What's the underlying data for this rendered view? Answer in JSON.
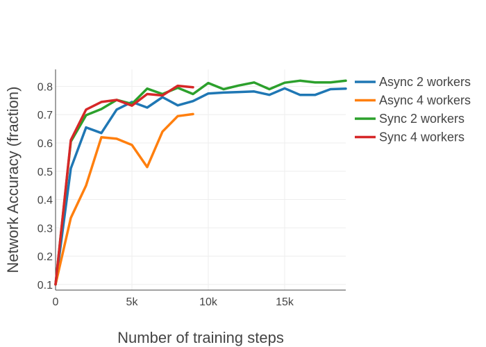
{
  "chart_data": {
    "type": "line",
    "title": "",
    "xlabel": "Number of training steps",
    "ylabel": "Network Accuracy (fraction)",
    "xlim": [
      0,
      19000
    ],
    "ylim": [
      0.08,
      0.86
    ],
    "xticks": [
      0,
      5000,
      10000,
      15000
    ],
    "xtick_labels": [
      "0",
      "5k",
      "10k",
      "15k"
    ],
    "yticks": [
      0.1,
      0.2,
      0.3,
      0.4,
      0.5,
      0.6,
      0.7,
      0.8
    ],
    "ytick_labels": [
      "0.1",
      "0.2",
      "0.3",
      "0.4",
      "0.5",
      "0.6",
      "0.7",
      "0.8"
    ],
    "grid": true,
    "legend_position": "right",
    "series": [
      {
        "name": "Async 2 workers",
        "color": "#1f77b4",
        "x": [
          0,
          1000,
          2000,
          3000,
          4000,
          5000,
          6000,
          7000,
          8000,
          9000,
          10000,
          11000,
          12000,
          13000,
          14000,
          15000,
          16000,
          17000,
          18000,
          19000
        ],
        "y": [
          0.1,
          0.51,
          0.655,
          0.635,
          0.718,
          0.745,
          0.725,
          0.762,
          0.733,
          0.748,
          0.775,
          0.778,
          0.78,
          0.782,
          0.77,
          0.793,
          0.77,
          0.77,
          0.79,
          0.792
        ]
      },
      {
        "name": "Async 4 workers",
        "color": "#ff7f0e",
        "x": [
          0,
          1000,
          2000,
          3000,
          4000,
          5000,
          6000,
          7000,
          8000,
          9000
        ],
        "y": [
          0.1,
          0.335,
          0.45,
          0.62,
          0.615,
          0.593,
          0.515,
          0.64,
          0.695,
          0.702
        ]
      },
      {
        "name": "Sync 2 workers",
        "color": "#2ca02c",
        "x": [
          0,
          1000,
          2000,
          3000,
          4000,
          5000,
          6000,
          7000,
          8000,
          9000,
          10000,
          11000,
          12000,
          13000,
          14000,
          15000,
          16000,
          17000,
          18000,
          19000
        ],
        "y": [
          0.1,
          0.605,
          0.698,
          0.72,
          0.752,
          0.738,
          0.792,
          0.773,
          0.795,
          0.773,
          0.812,
          0.79,
          0.803,
          0.814,
          0.79,
          0.813,
          0.82,
          0.814,
          0.814,
          0.82
        ]
      },
      {
        "name": "Sync 4 workers",
        "color": "#d62728",
        "x": [
          0,
          1000,
          2000,
          3000,
          4000,
          5000,
          6000,
          7000,
          8000,
          9000
        ],
        "y": [
          0.1,
          0.61,
          0.718,
          0.745,
          0.752,
          0.732,
          0.773,
          0.768,
          0.802,
          0.797
        ]
      }
    ]
  }
}
